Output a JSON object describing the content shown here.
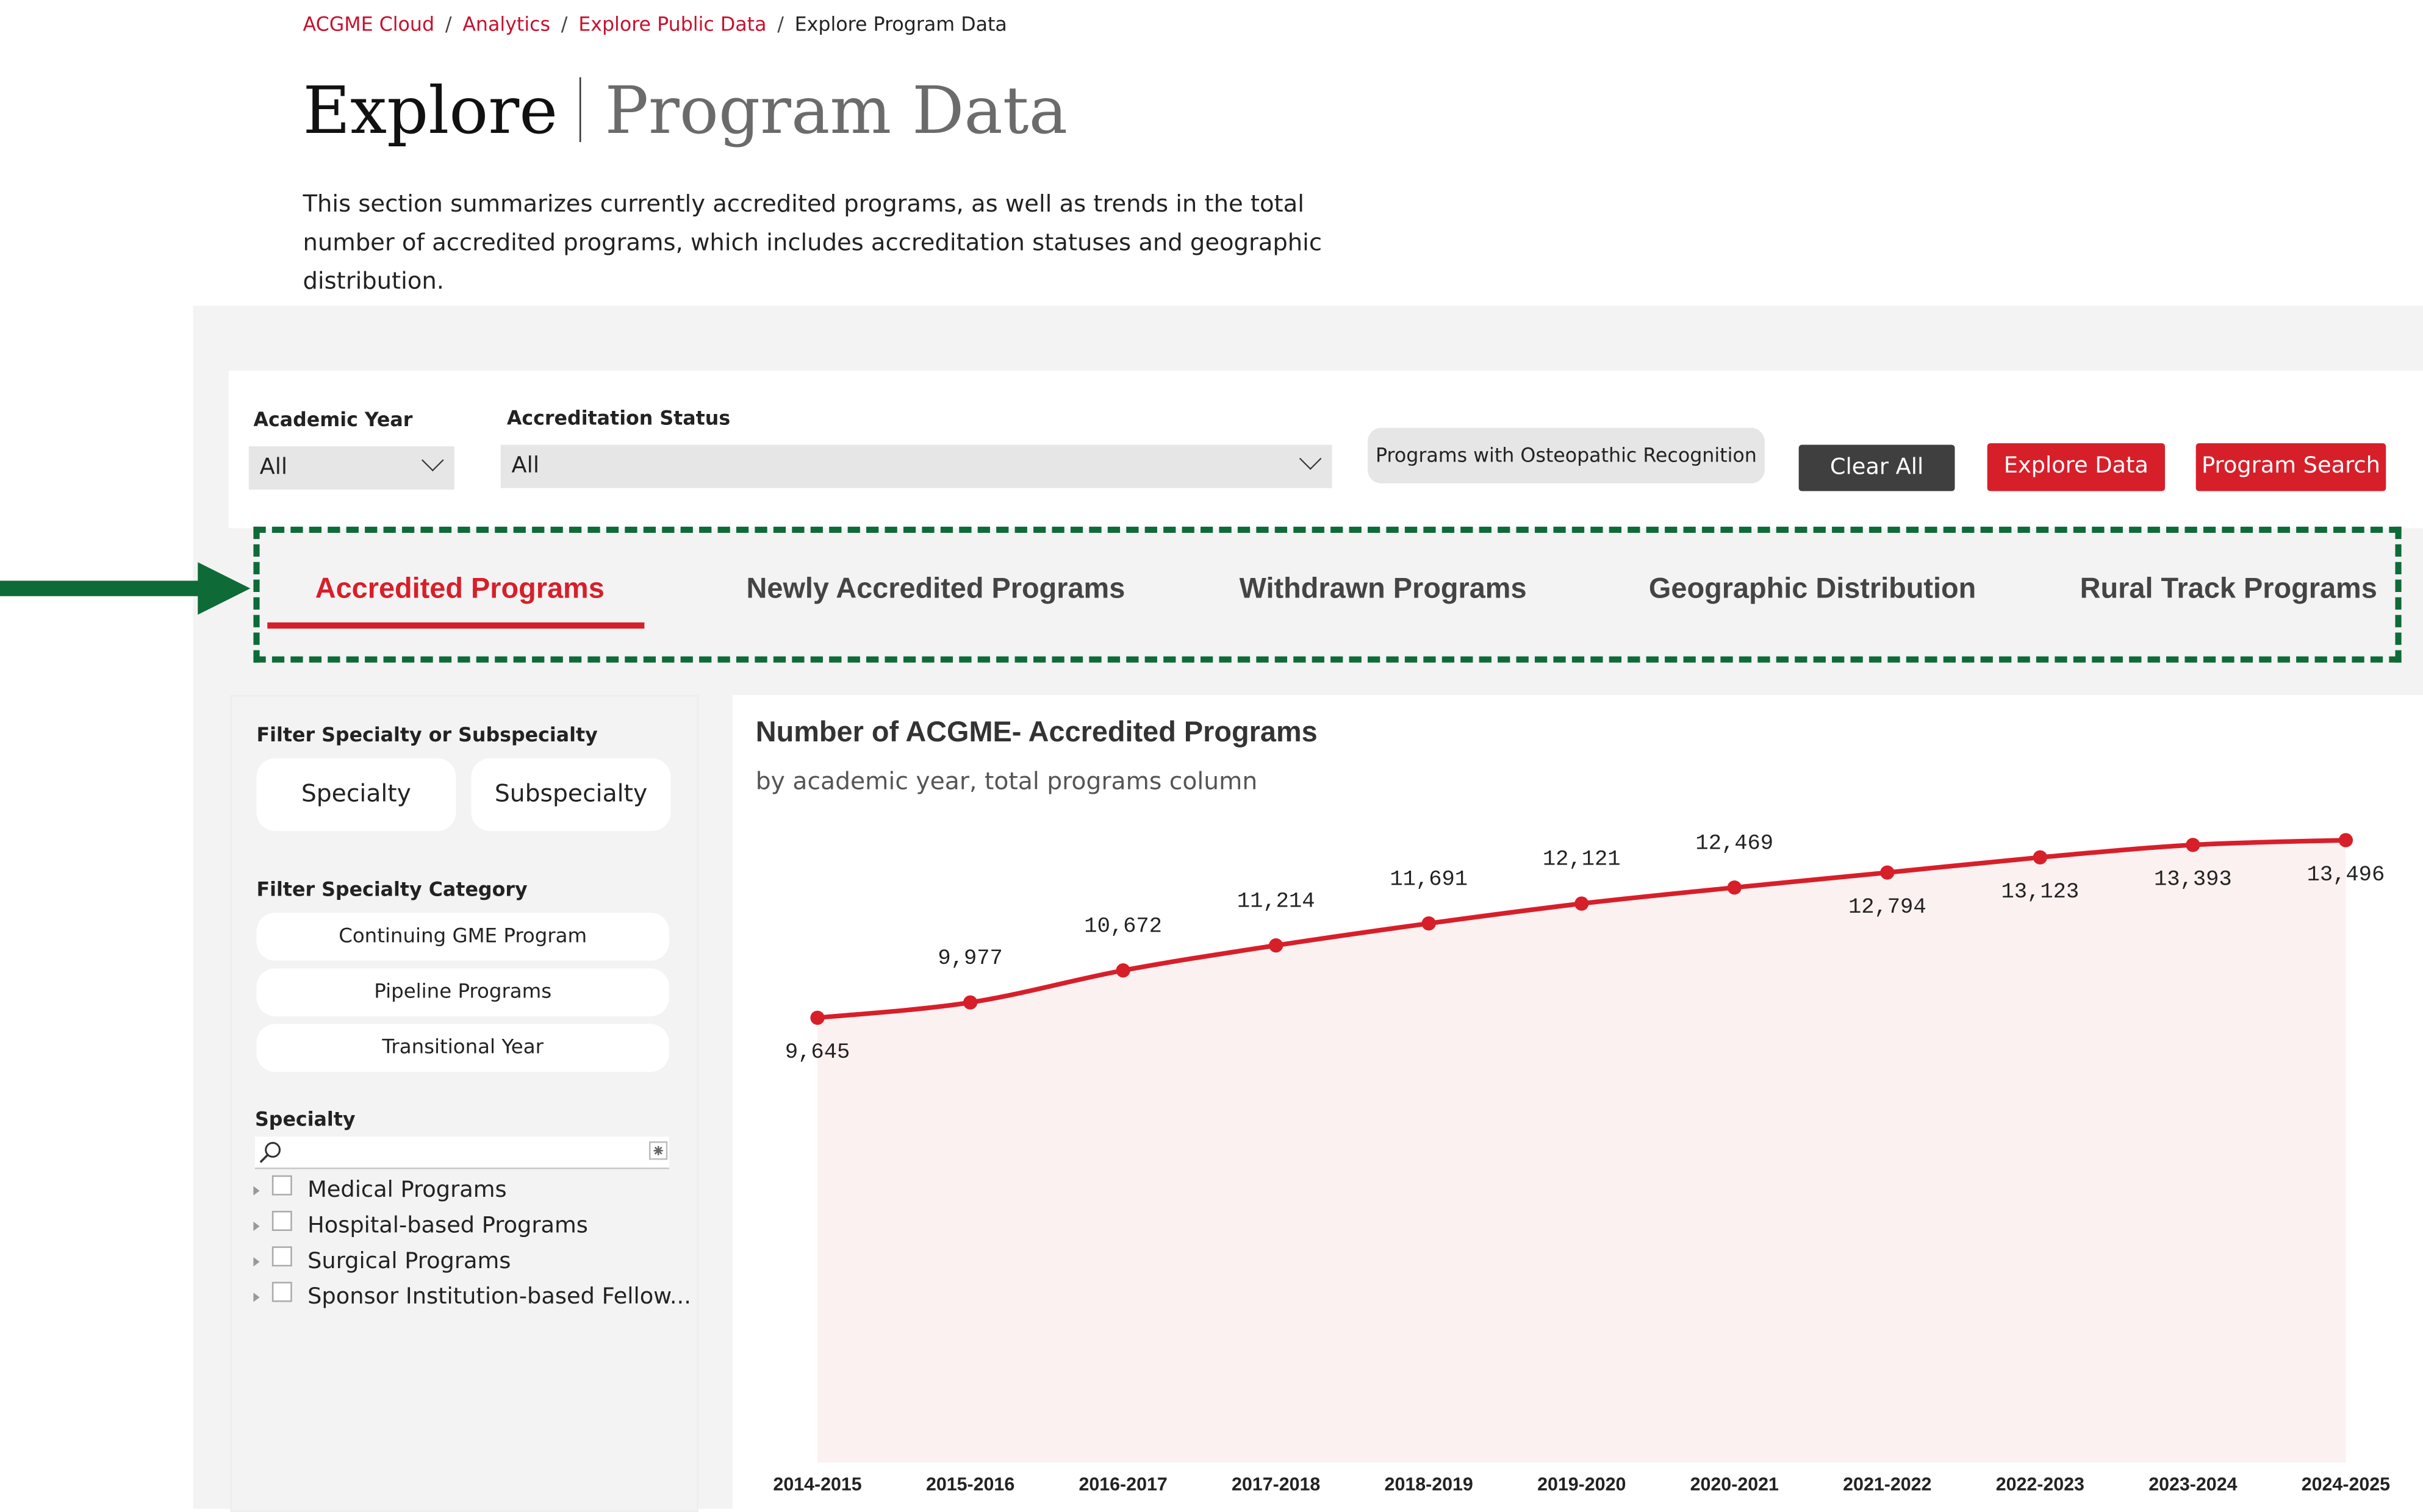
{
  "breadcrumb": {
    "items": [
      "ACGME Cloud",
      "Analytics",
      "Explore Public Data"
    ],
    "current": "Explore Program Data",
    "separator": "/"
  },
  "header": {
    "title_part1": "Explore",
    "title_part2": "Program Data",
    "description": "This section summarizes currently accredited programs, as well as trends in the total number of accredited programs, which includes accreditation statuses and geographic distribution."
  },
  "filters": {
    "academic_year": {
      "label": "Academic Year",
      "value": "All"
    },
    "accreditation_status": {
      "label": "Accreditation Status",
      "value": "All"
    },
    "osteopathic_button": "Programs with Osteopathic Recognition",
    "clear_all": "Clear All",
    "explore_data": "Explore Data",
    "program_search": "Program Search"
  },
  "tabs": [
    {
      "label": "Accredited Programs",
      "active": true
    },
    {
      "label": "Newly Accredited Programs",
      "active": false
    },
    {
      "label": "Withdrawn Programs",
      "active": false
    },
    {
      "label": "Geographic Distribution",
      "active": false
    },
    {
      "label": "Rural Track Programs",
      "active": false
    }
  ],
  "sidebar": {
    "specialty_filter_title": "Filter Specialty or Subspecialty",
    "specialty_button": "Specialty",
    "subspecialty_button": "Subspecialty",
    "category_title": "Filter Specialty Category",
    "categories": [
      "Continuing GME Program",
      "Pipeline Programs",
      "Transitional Year"
    ],
    "specialty_title": "Specialty",
    "tree": [
      "Medical Programs",
      "Hospital-based Programs",
      "Surgical Programs",
      "Sponsor Institution-based Fellow..."
    ]
  },
  "chart_data": {
    "type": "line",
    "title": "Number of ACGME- Accredited Programs",
    "subtitle": "by academic year, total programs column",
    "categories": [
      "2014-2015",
      "2015-2016",
      "2016-2017",
      "2017-2018",
      "2018-2019",
      "2019-2020",
      "2020-2021",
      "2021-2022",
      "2022-2023",
      "2023-2024",
      "2024-2025"
    ],
    "values": [
      9645,
      9977,
      10672,
      11214,
      11691,
      12121,
      12469,
      12794,
      13123,
      13393,
      13496
    ],
    "value_labels": [
      "9,645",
      "9,977",
      "10,672",
      "11,214",
      "11,691",
      "12,121",
      "12,469",
      "12,794",
      "13,123",
      "13,393",
      "13,496"
    ],
    "ylim": [
      0,
      14500
    ],
    "grid": false,
    "colors": {
      "line": "#d71f2a",
      "area": "#fcf1f1"
    }
  },
  "colors": {
    "accent": "#d71f2a",
    "link": "#c8102e",
    "highlight_box": "#0e6b37",
    "dark_button": "#3f3f3f"
  }
}
